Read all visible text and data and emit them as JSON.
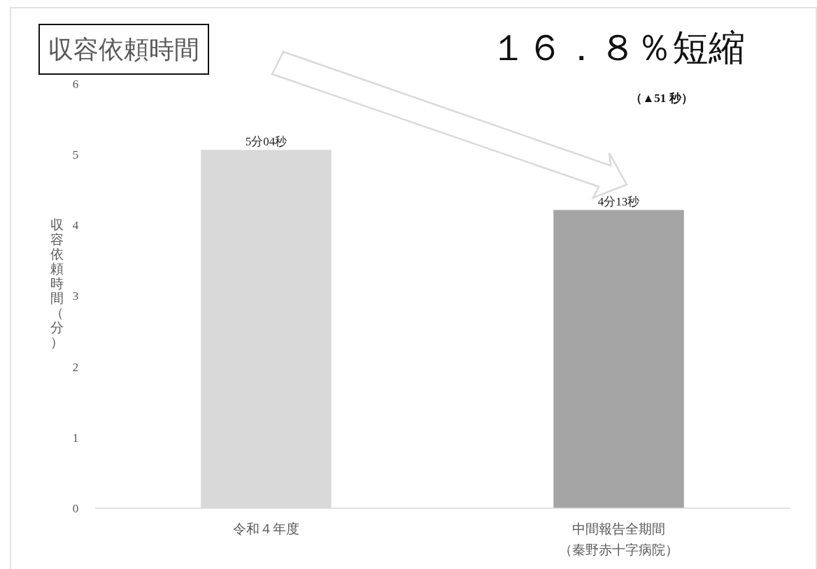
{
  "chart_data": {
    "type": "bar",
    "title": "収容依頼時間",
    "ylabel": "収容依頼時間（分）",
    "categories": [
      "令和４年度",
      "中間報告全期間（秦野赤十字病院）"
    ],
    "values": [
      5.0667,
      4.2167
    ],
    "colors": [
      "#d9d9d9",
      "#a5a5a5"
    ],
    "value_labels": [
      "5分04秒",
      "4分13秒"
    ],
    "ylim": [
      0,
      6
    ],
    "yticks": [
      0,
      1,
      2,
      3,
      4,
      5,
      6
    ],
    "annotations": [
      "１６．８％短縮",
      "（▲51 秒）"
    ]
  }
}
